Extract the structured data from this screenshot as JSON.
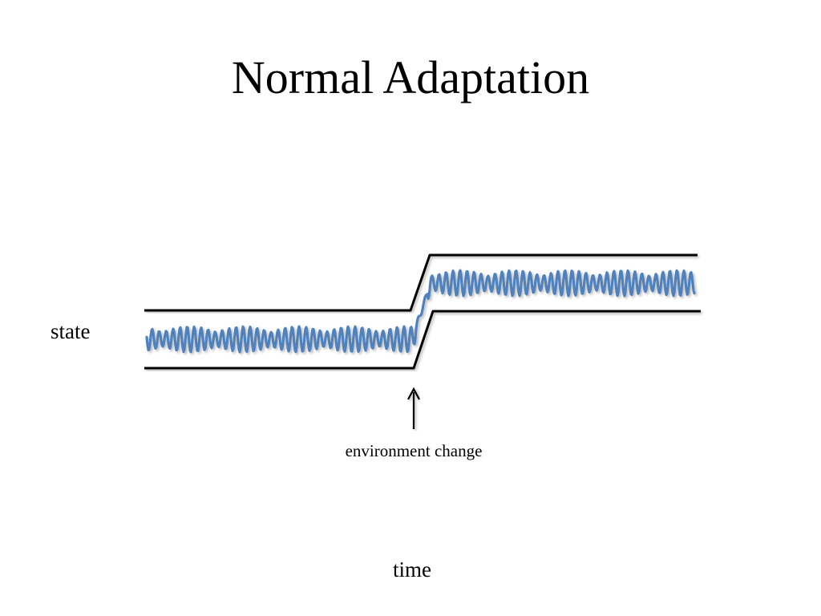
{
  "slide": {
    "title": "Normal Adaptation"
  },
  "diagram": {
    "y_label": "state",
    "x_label": "time",
    "annotation": "environment change",
    "colors": {
      "signal": "#4f81bd",
      "bounds": "#000000",
      "axes": "#000000"
    }
  }
}
